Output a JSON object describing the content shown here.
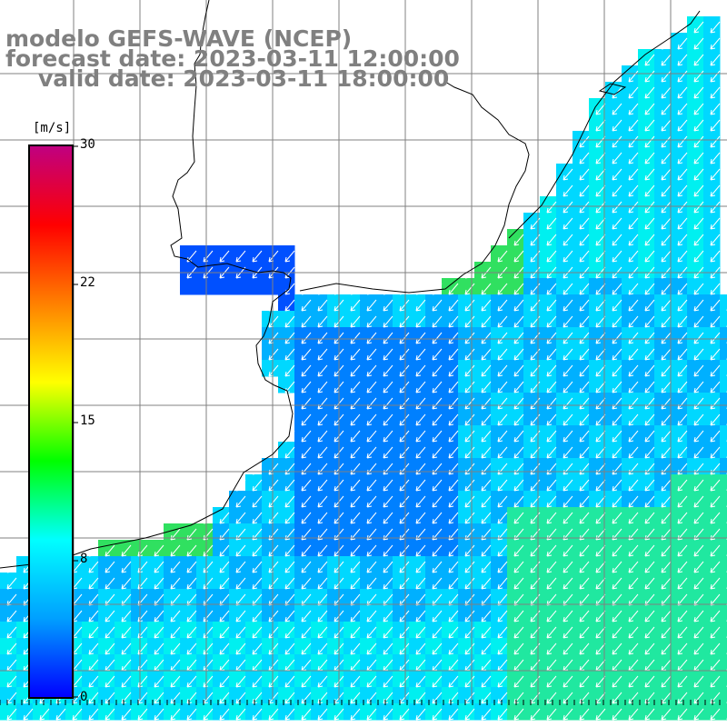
{
  "header": {
    "model": "modelo GEFS-WAVE (NCEP)",
    "forecast": "forecast date: 2023-03-11 12:00:00",
    "valid": "valid date: 2023-03-11 18:00:00"
  },
  "colorbar": {
    "unit": "[m/s]",
    "ticks": [
      "30",
      "22",
      "15",
      "8",
      "0"
    ],
    "colors": [
      "#0000ff",
      "#00a0ff",
      "#00ffff",
      "#00ff00",
      "#ffff00",
      "#ff8000",
      "#ff0000",
      "#c00080"
    ]
  },
  "map": {
    "land_color": "#ffffff",
    "coast_color": "#000000",
    "grid_color": "#808080",
    "arrow_color": "#ffffff",
    "field_palette": [
      "#0050ff",
      "#0080ff",
      "#00b0ff",
      "#00d8ff",
      "#00f0f0",
      "#20e8a0",
      "#30e060"
    ]
  }
}
